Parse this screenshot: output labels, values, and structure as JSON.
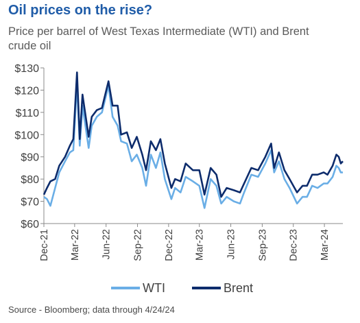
{
  "title": "Oil prices on the rise?",
  "subtitle": "Price per barrel of West Texas Intermediate (WTI) and Brent crude oil",
  "source": "Source - Bloomberg; data through 4/24/24",
  "colors": {
    "wti": "#6aaee6",
    "brent": "#0d2c6c",
    "title": "#1f5ca8",
    "axis": "#8a8a8a"
  },
  "chart_data": {
    "type": "line",
    "title": "Oil prices on the rise?",
    "subtitle": "Price per barrel of West Texas Intermediate (WTI) and Brent crude oil",
    "xlabel": "",
    "ylabel": "",
    "ylim": [
      60,
      130
    ],
    "yticks": [
      60,
      70,
      80,
      90,
      100,
      110,
      120,
      130
    ],
    "ytick_labels": [
      "$60",
      "$70",
      "$80",
      "$90",
      "$100",
      "$110",
      "$120",
      "$130"
    ],
    "xticks": [
      "2021-12-01",
      "2022-03-01",
      "2022-06-01",
      "2022-09-01",
      "2022-12-01",
      "2023-03-01",
      "2023-06-01",
      "2023-09-01",
      "2023-12-01",
      "2024-03-01"
    ],
    "xtick_labels": [
      "Dec-21",
      "Mar-22",
      "Jun-22",
      "Sep-22",
      "Dec-22",
      "Mar-23",
      "Jun-23",
      "Sep-23",
      "Dec-23",
      "Mar-24"
    ],
    "xlim": [
      "2021-12-01",
      "2024-04-24"
    ],
    "grid": false,
    "legend_position": "bottom",
    "series": [
      {
        "name": "WTI",
        "points": [
          [
            "2021-12-01",
            72
          ],
          [
            "2021-12-10",
            71
          ],
          [
            "2021-12-20",
            68
          ],
          [
            "2022-01-03",
            76
          ],
          [
            "2022-01-15",
            83
          ],
          [
            "2022-02-01",
            88
          ],
          [
            "2022-02-15",
            92
          ],
          [
            "2022-02-25",
            93
          ],
          [
            "2022-03-08",
            123
          ],
          [
            "2022-03-16",
            95
          ],
          [
            "2022-03-24",
            113
          ],
          [
            "2022-04-11",
            94
          ],
          [
            "2022-04-20",
            104
          ],
          [
            "2022-05-05",
            108
          ],
          [
            "2022-05-20",
            110
          ],
          [
            "2022-06-08",
            122
          ],
          [
            "2022-06-20",
            108
          ],
          [
            "2022-07-05",
            104
          ],
          [
            "2022-07-15",
            97
          ],
          [
            "2022-08-01",
            96
          ],
          [
            "2022-08-15",
            88
          ],
          [
            "2022-08-30",
            91
          ],
          [
            "2022-09-15",
            85
          ],
          [
            "2022-09-26",
            77
          ],
          [
            "2022-10-10",
            91
          ],
          [
            "2022-10-25",
            85
          ],
          [
            "2022-11-07",
            92
          ],
          [
            "2022-11-20",
            80
          ],
          [
            "2022-12-09",
            71
          ],
          [
            "2022-12-20",
            76
          ],
          [
            "2023-01-05",
            74
          ],
          [
            "2023-01-20",
            81
          ],
          [
            "2023-02-10",
            79
          ],
          [
            "2023-03-01",
            77
          ],
          [
            "2023-03-16",
            67
          ],
          [
            "2023-04-03",
            80
          ],
          [
            "2023-04-20",
            77
          ],
          [
            "2023-05-04",
            69
          ],
          [
            "2023-05-20",
            72
          ],
          [
            "2023-06-10",
            70
          ],
          [
            "2023-06-28",
            69
          ],
          [
            "2023-07-10",
            74
          ],
          [
            "2023-07-31",
            82
          ],
          [
            "2023-08-20",
            81
          ],
          [
            "2023-09-10",
            87
          ],
          [
            "2023-09-27",
            93
          ],
          [
            "2023-10-06",
            83
          ],
          [
            "2023-10-20",
            88
          ],
          [
            "2023-11-05",
            80
          ],
          [
            "2023-11-20",
            76
          ],
          [
            "2023-12-12",
            69
          ],
          [
            "2023-12-28",
            72
          ],
          [
            "2024-01-10",
            72
          ],
          [
            "2024-01-25",
            77
          ],
          [
            "2024-02-10",
            76
          ],
          [
            "2024-02-28",
            78
          ],
          [
            "2024-03-10",
            78
          ],
          [
            "2024-03-25",
            81
          ],
          [
            "2024-04-05",
            86
          ],
          [
            "2024-04-12",
            85
          ],
          [
            "2024-04-18",
            83
          ],
          [
            "2024-04-24",
            83
          ]
        ]
      },
      {
        "name": "Brent",
        "points": [
          [
            "2021-12-01",
            73
          ],
          [
            "2021-12-10",
            76
          ],
          [
            "2021-12-20",
            79
          ],
          [
            "2022-01-03",
            80
          ],
          [
            "2022-01-15",
            86
          ],
          [
            "2022-02-01",
            90
          ],
          [
            "2022-02-15",
            95
          ],
          [
            "2022-02-25",
            98
          ],
          [
            "2022-03-08",
            128
          ],
          [
            "2022-03-16",
            98
          ],
          [
            "2022-03-24",
            118
          ],
          [
            "2022-04-11",
            99
          ],
          [
            "2022-04-20",
            108
          ],
          [
            "2022-05-05",
            111
          ],
          [
            "2022-05-20",
            112
          ],
          [
            "2022-06-08",
            124
          ],
          [
            "2022-06-20",
            113
          ],
          [
            "2022-07-05",
            113
          ],
          [
            "2022-07-15",
            100
          ],
          [
            "2022-08-01",
            101
          ],
          [
            "2022-08-15",
            94
          ],
          [
            "2022-08-30",
            99
          ],
          [
            "2022-09-15",
            91
          ],
          [
            "2022-09-26",
            84
          ],
          [
            "2022-10-10",
            97
          ],
          [
            "2022-10-25",
            93
          ],
          [
            "2022-11-07",
            98
          ],
          [
            "2022-11-20",
            87
          ],
          [
            "2022-12-09",
            76
          ],
          [
            "2022-12-20",
            80
          ],
          [
            "2023-01-05",
            79
          ],
          [
            "2023-01-20",
            87
          ],
          [
            "2023-02-10",
            84
          ],
          [
            "2023-03-01",
            84
          ],
          [
            "2023-03-16",
            73
          ],
          [
            "2023-04-03",
            85
          ],
          [
            "2023-04-20",
            82
          ],
          [
            "2023-05-04",
            72
          ],
          [
            "2023-05-20",
            76
          ],
          [
            "2023-06-10",
            75
          ],
          [
            "2023-06-28",
            74
          ],
          [
            "2023-07-10",
            78
          ],
          [
            "2023-07-31",
            85
          ],
          [
            "2023-08-20",
            84
          ],
          [
            "2023-09-10",
            90
          ],
          [
            "2023-09-27",
            96
          ],
          [
            "2023-10-06",
            85
          ],
          [
            "2023-10-20",
            92
          ],
          [
            "2023-11-05",
            84
          ],
          [
            "2023-11-20",
            80
          ],
          [
            "2023-12-12",
            74
          ],
          [
            "2023-12-28",
            77
          ],
          [
            "2024-01-10",
            77
          ],
          [
            "2024-01-25",
            82
          ],
          [
            "2024-02-10",
            82
          ],
          [
            "2024-02-28",
            83
          ],
          [
            "2024-03-10",
            82
          ],
          [
            "2024-03-25",
            86
          ],
          [
            "2024-04-05",
            91
          ],
          [
            "2024-04-12",
            90
          ],
          [
            "2024-04-18",
            87
          ],
          [
            "2024-04-24",
            88
          ]
        ]
      }
    ]
  }
}
